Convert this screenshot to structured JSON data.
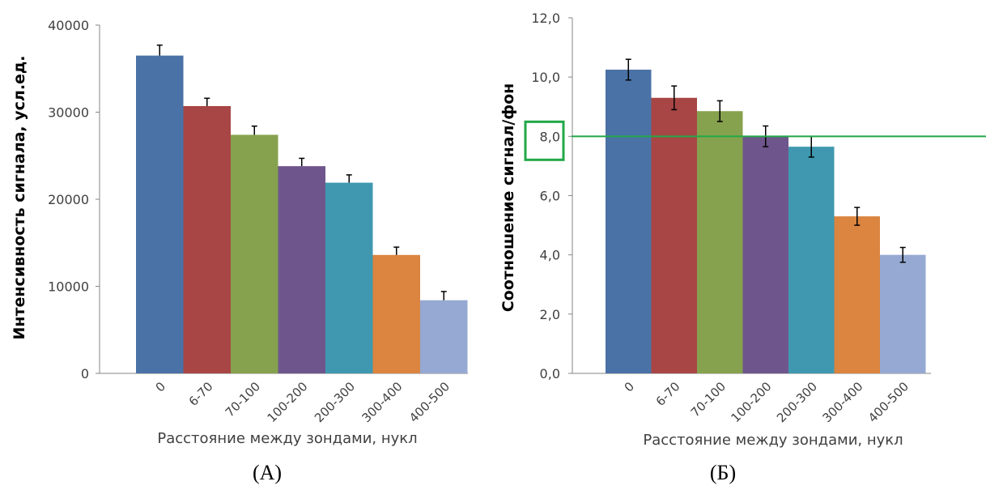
{
  "chart_data": [
    {
      "type": "bar",
      "panel_label": "(А)",
      "xlabel": "Расстояние между зондами, нукл",
      "ylabel": "Интенсивность сигнала, усл.ед.",
      "ylim": [
        0,
        40000
      ],
      "yticks": [
        "0",
        "10000",
        "20000",
        "30000",
        "40000"
      ],
      "categories": [
        "0",
        "6-70",
        "70-100",
        "100-200",
        "200-300",
        "300-400",
        "400-500"
      ],
      "values": [
        36500,
        30700,
        27400,
        23800,
        21900,
        13600,
        8400
      ],
      "errors": [
        1200,
        900,
        1000,
        900,
        900,
        900,
        1000
      ],
      "error_style": "upper",
      "colors": [
        "#4a72a6",
        "#a84645",
        "#86a24e",
        "#6e568c",
        "#3f98b0",
        "#db8540",
        "#95a9d2"
      ]
    },
    {
      "type": "bar",
      "panel_label": "(Б)",
      "xlabel": "Расстояние между зондами, нукл",
      "ylabel": "Соотношение сигнал/фон",
      "ylim": [
        0,
        12
      ],
      "yticks": [
        "0,0",
        "2,0",
        "4,0",
        "6,0",
        "8,0",
        "10,0",
        "12,0"
      ],
      "categories": [
        "0",
        "6-70",
        "70-100",
        "100-200",
        "200-300",
        "300-400",
        "400-500"
      ],
      "values": [
        10.25,
        9.3,
        8.85,
        8.0,
        7.65,
        5.3,
        4.0
      ],
      "errors": [
        0.35,
        0.4,
        0.35,
        0.35,
        0.35,
        0.3,
        0.25
      ],
      "error_style": "both",
      "colors": [
        "#4a72a6",
        "#a84645",
        "#86a24e",
        "#6e568c",
        "#3f98b0",
        "#db8540",
        "#95a9d2"
      ],
      "reference_line": {
        "value": 8.0,
        "color": "#22a847"
      },
      "highlight_tick": {
        "value": "8,0",
        "color": "#22a847"
      }
    }
  ]
}
